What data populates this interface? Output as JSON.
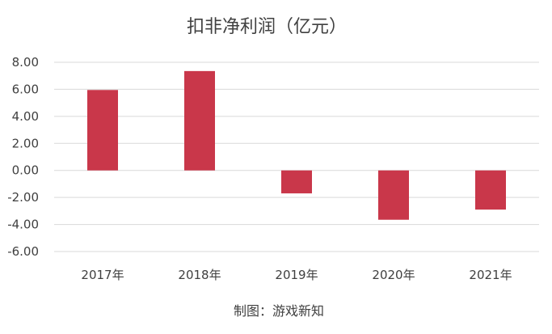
{
  "chart_data": {
    "type": "bar",
    "title": "扣非净利润（亿元）",
    "xlabel": "",
    "ylabel": "",
    "categories": [
      "2017年",
      "2018年",
      "2019年",
      "2020年",
      "2021年"
    ],
    "values": [
      5.95,
      7.35,
      -1.7,
      -3.65,
      -2.9
    ],
    "ylim": [
      -6,
      8
    ],
    "yticks": [
      8,
      6,
      4,
      2,
      0,
      -2,
      -4,
      -6
    ],
    "ytick_labels": [
      "8.00",
      "6.00",
      "4.00",
      "2.00",
      "0.00",
      "-2.00",
      "-4.00",
      "-6.00"
    ],
    "grid": true,
    "legend": "none",
    "bar_color": "#c9374a",
    "credit": "制图：游戏新知"
  }
}
